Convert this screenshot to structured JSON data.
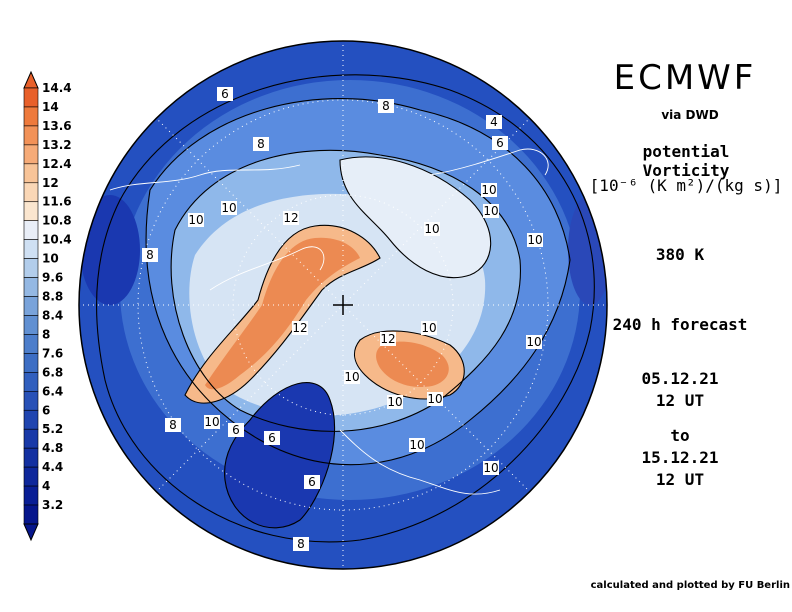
{
  "header": {
    "model": "ECMWF",
    "source": "via DWD"
  },
  "parameter": {
    "name": "potential Vorticity",
    "units": "[10⁻⁶ (K m²)/(kg s)]",
    "level": "380 K"
  },
  "forecast": {
    "lead": "240 h forecast",
    "init_date": "05.12.21",
    "init_time": "12 UT",
    "to_label": "to",
    "valid_date": "15.12.21",
    "valid_time": "12 UT"
  },
  "colorbar": {
    "labels": [
      "14.4",
      "14",
      "13.6",
      "13.2",
      "12.4",
      "12",
      "11.6",
      "10.8",
      "10.4",
      "10",
      "9.6",
      "8.8",
      "8.4",
      "8",
      "7.6",
      "6.8",
      "6.4",
      "6",
      "5.2",
      "4.8",
      "4.4",
      "4",
      "3.2"
    ],
    "colors": [
      "#e8602a",
      "#ee7a3c",
      "#f29258",
      "#f6ab78",
      "#f8c498",
      "#fad7b6",
      "#fbe6cf",
      "#e9eef7",
      "#cfe0f3",
      "#b2cdeb",
      "#94b8e3",
      "#79a3da",
      "#6190d2",
      "#4d7ecb",
      "#3d6ec4",
      "#315fbe",
      "#2851b7",
      "#2045b0",
      "#1839a8",
      "#1330a1",
      "#0e279b",
      "#091e95",
      "#06168c"
    ]
  },
  "map": {
    "center_marker": "+",
    "colors": {
      "deep_blue": "#1a38b0",
      "mid_blue": "#3d6fd0",
      "light_blue": "#8fb8ea",
      "pale": "#dfe9f5",
      "peach": "#f6b98a",
      "orange": "#ec8a52"
    },
    "contour_labels": [
      "6",
      "8",
      "4",
      "6",
      "8",
      "10",
      "10",
      "10",
      "12",
      "10",
      "10",
      "10",
      "12",
      "10",
      "10",
      "8",
      "10",
      "6",
      "6",
      "6",
      "10",
      "10",
      "8",
      "10",
      "8",
      "10",
      "10",
      "12"
    ]
  },
  "credit": "calculated and plotted by FU Berlin"
}
